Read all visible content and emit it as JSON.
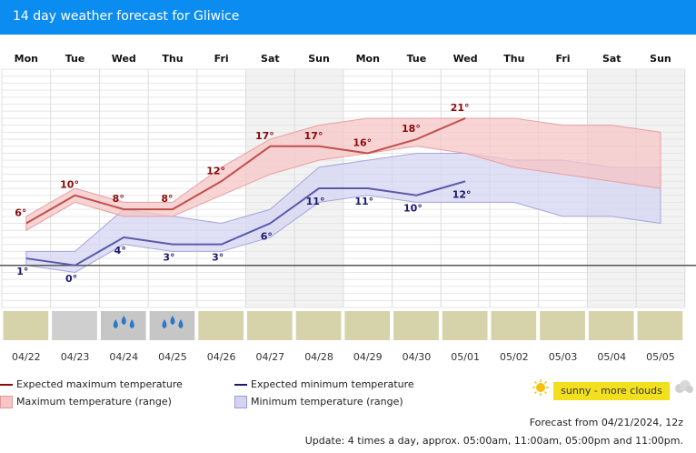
{
  "title": "14 day weather forecast for Gliwice",
  "chart_data": {
    "type": "line",
    "days": [
      "Mon",
      "Tue",
      "Wed",
      "Thu",
      "Fri",
      "Sat",
      "Sun",
      "Mon",
      "Tue",
      "Wed",
      "Thu",
      "Fri",
      "Sat",
      "Sun"
    ],
    "dates": [
      "04/22",
      "04/23",
      "04/24",
      "04/25",
      "04/26",
      "04/27",
      "04/28",
      "04/29",
      "04/30",
      "05/01",
      "05/02",
      "05/03",
      "05/04",
      "05/05"
    ],
    "series": [
      {
        "name": "Expected maximum temperature",
        "values": [
          6,
          10,
          8,
          8,
          12,
          17,
          17,
          16,
          18,
          21,
          null,
          null,
          null,
          null
        ],
        "color": "#c0504d"
      },
      {
        "name": "Expected minimum temperature",
        "values": [
          1,
          0,
          4,
          3,
          3,
          6,
          11,
          11,
          10,
          12,
          null,
          null,
          null,
          null
        ],
        "color": "#5a5aad"
      }
    ],
    "max_range": {
      "name": "Maximum temperature (range)",
      "low": [
        5,
        9,
        7,
        7,
        10,
        13,
        15,
        16,
        17,
        16,
        14,
        13,
        12,
        11
      ],
      "high": [
        7,
        11,
        9,
        9,
        14,
        18,
        20,
        21,
        21,
        21,
        21,
        20,
        20,
        19
      ]
    },
    "min_range": {
      "name": "Minimum temperature (range)",
      "low": [
        0,
        -1,
        3,
        2,
        2,
        4,
        9,
        10,
        9,
        9,
        9,
        7,
        7,
        6
      ],
      "high": [
        2,
        2,
        8,
        7,
        6,
        8,
        14,
        15,
        16,
        16,
        15,
        15,
        14,
        14
      ]
    },
    "ylim": [
      -6,
      28
    ],
    "zero_line": 0,
    "weather_icons": [
      "sunny",
      "overcast",
      "rain",
      "rain",
      "sunny",
      "sunny",
      "sunny",
      "sunny",
      "sunny",
      "sunny",
      "sunny",
      "sunny",
      "sunny",
      "sunny"
    ]
  },
  "legend": {
    "max_expected": "Expected maximum temperature",
    "max_range": "Maximum temperature (range)",
    "min_expected": "Expected minimum temperature",
    "min_range": "Minimum temperature (range)",
    "badge": "sunny - more clouds"
  },
  "info": {
    "forecast": "Forecast from 04/21/2024, 12z",
    "update": "Update: 4 times a day, approx. 05:00am, 11:00am, 05:00pm and 11:00pm."
  },
  "colors": {
    "header": "#0a8cf0",
    "max": "#c0504d",
    "min": "#5a5aad",
    "max_band": "#f6c6c6",
    "min_band": "#d4d4f2"
  }
}
